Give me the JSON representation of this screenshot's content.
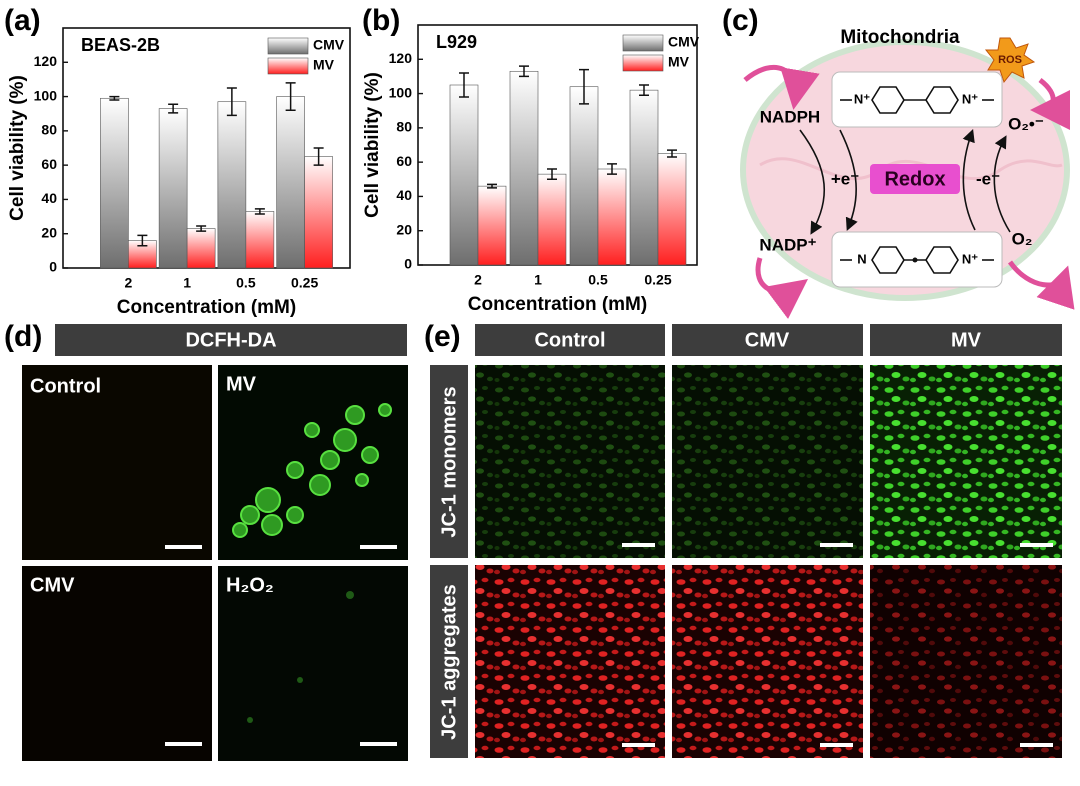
{
  "panel_labels": [
    "(a)",
    "(b)",
    "(c)",
    "(d)",
    "(e)"
  ],
  "chart_data": [
    {
      "type": "bar",
      "title": "BEAS-2B",
      "categories": [
        "2",
        "1",
        "0.5",
        "0.25"
      ],
      "series": [
        {
          "name": "CMV",
          "color": "#6e6e6e",
          "values": [
            99,
            93,
            97,
            100
          ],
          "errors": [
            1,
            2.5,
            8,
            8
          ]
        },
        {
          "name": "MV",
          "color": "#ff1f1f",
          "values": [
            16,
            23,
            33,
            65
          ],
          "errors": [
            3,
            1.5,
            1.5,
            5
          ]
        }
      ],
      "ylim": [
        0,
        140
      ],
      "yticks": [
        0,
        20,
        40,
        60,
        80,
        100,
        120
      ],
      "xlabel": "Concentration (mM)",
      "ylabel": "Cell viability (%)"
    },
    {
      "type": "bar",
      "title": "L929",
      "categories": [
        "2",
        "1",
        "0.5",
        "0.25"
      ],
      "series": [
        {
          "name": "CMV",
          "color": "#6e6e6e",
          "values": [
            105,
            113,
            104,
            102
          ],
          "errors": [
            7,
            3,
            10,
            3
          ]
        },
        {
          "name": "MV",
          "color": "#ff1f1f",
          "values": [
            46,
            53,
            56,
            65
          ],
          "errors": [
            1,
            3,
            3,
            2
          ]
        }
      ],
      "ylim": [
        0,
        140
      ],
      "yticks": [
        0,
        20,
        40,
        60,
        80,
        100,
        120
      ],
      "xlabel": "Concentration (mM)",
      "ylabel": "Cell viability (%)"
    }
  ],
  "diagram": {
    "title": "Mitochondria",
    "ros": "ROS",
    "nadph": "NADPH",
    "nadp": "NADP⁺",
    "gain": "+e⁻",
    "redox": "Redox",
    "loss": "-e⁻",
    "superoxide": "O₂•⁻",
    "oxygen": "O₂",
    "molecule_top": [
      "N⁺",
      "N⁺"
    ],
    "molecule_bottom": [
      "N",
      "N⁺"
    ]
  },
  "panel_d": {
    "header": "DCFH-DA",
    "images": [
      "Control",
      "MV",
      "CMV",
      "H₂O₂"
    ]
  },
  "panel_e": {
    "columns": [
      "Control",
      "CMV",
      "MV"
    ],
    "rows": [
      "JC-1 monomers",
      "JC-1 aggregates"
    ]
  }
}
